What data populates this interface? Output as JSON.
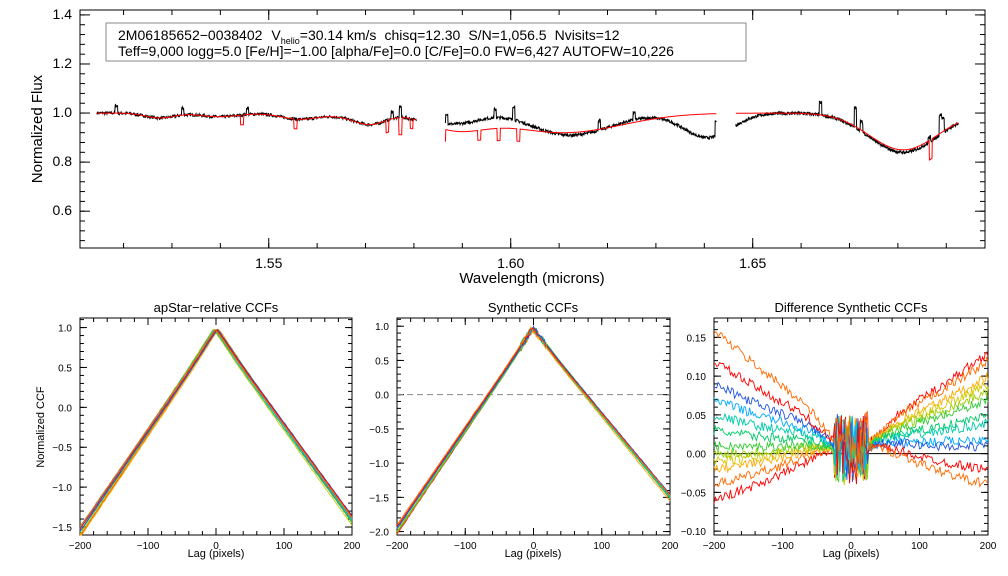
{
  "colors": {
    "observed": "#000000",
    "model": "#ff0000",
    "zero_line_dashed": "#888888",
    "zero_line_solid": "#000000",
    "ccf_palette": [
      "#ff0000",
      "#ff6a00",
      "#ffaa00",
      "#d4c800",
      "#9acd00",
      "#33cc33",
      "#00cc66",
      "#00ccaa",
      "#00aaff",
      "#2255dd"
    ]
  },
  "info_box": {
    "star_id": "2M06185652−0038402",
    "vhelio_label": "V",
    "vhelio_sub": "helio",
    "vhelio_value": "=30.14 km/s",
    "chisq": "chisq=12.30",
    "snr": "S/N=1,056.5",
    "nvisits": "Nvisits=12",
    "line2": "Teff=9,000 logg=5.0 [Fe/H]=−1.00 [alpha/Fe]=0.0 [C/Fe]=0.0 FW=6,427 AUTOFW=10,226"
  },
  "chart_data": [
    {
      "id": "spectrum",
      "type": "line",
      "title": "",
      "xlabel": "Wavelength (microns)",
      "ylabel": "Normalized Flux",
      "xlim": [
        1.511,
        1.698
      ],
      "ylim": [
        0.45,
        1.42
      ],
      "xticks": [
        1.55,
        1.6,
        1.65
      ],
      "xtick_labels": [
        "1.55",
        "1.60",
        "1.65"
      ],
      "yticks": [
        0.6,
        0.8,
        1.0,
        1.2,
        1.4
      ],
      "ytick_labels": [
        "0.6",
        "0.8",
        "1.0",
        "1.2",
        "1.4"
      ],
      "segments": [
        [
          1.5145,
          1.5805
        ],
        [
          1.5865,
          1.6425
        ],
        [
          1.6465,
          1.6925
        ]
      ],
      "series": [
        {
          "name": "observed",
          "dips": [
            [
              1.5275,
              0.02,
              0.003
            ],
            [
              1.5398,
              0.015,
              0.004
            ],
            [
              1.5565,
              0.025,
              0.004
            ],
            [
              1.5685,
              0.02,
              0.004
            ],
            [
              1.5715,
              0.03,
              0.003
            ],
            [
              1.5885,
              0.07,
              0.006
            ],
            [
              1.6109,
              0.11,
              0.009
            ],
            [
              1.6407,
              0.1,
              0.005
            ],
            [
              1.6811,
              0.16,
              0.007
            ]
          ],
          "spikes": [
            [
              1.5185,
              0.03
            ],
            [
              1.5322,
              0.03
            ],
            [
              1.5456,
              0.025
            ],
            [
              1.5755,
              0.03
            ],
            [
              1.5772,
              0.045
            ],
            [
              1.5868,
              0.04
            ],
            [
              1.5968,
              0.035
            ],
            [
              1.6006,
              0.055
            ],
            [
              1.6183,
              0.04
            ],
            [
              1.6255,
              0.03
            ],
            [
              1.6425,
              0.06
            ],
            [
              1.664,
              0.05
            ],
            [
              1.6712,
              0.08
            ],
            [
              1.6725,
              0.04
            ],
            [
              1.6865,
              0.02
            ],
            [
              1.6888,
              0.08
            ],
            [
              1.6893,
              0.06
            ]
          ],
          "hump": [
            1.5975,
            0.04,
            0.012
          ]
        },
        {
          "name": "model",
          "dips": [
            [
              1.5275,
              0.02,
              0.003
            ],
            [
              1.5398,
              0.015,
              0.004
            ],
            [
              1.5565,
              0.025,
              0.004
            ],
            [
              1.5685,
              0.02,
              0.004
            ],
            [
              1.5715,
              0.03,
              0.003
            ],
            [
              1.5885,
              0.06,
              0.006
            ],
            [
              1.6109,
              0.08,
              0.012
            ],
            [
              1.6811,
              0.15,
              0.007
            ]
          ],
          "lines": [
            [
              1.5135,
              0.05
            ],
            [
              1.5445,
              0.04
            ],
            [
              1.5555,
              0.04
            ],
            [
              1.5745,
              0.05
            ],
            [
              1.5772,
              0.07
            ],
            [
              1.5795,
              0.04
            ],
            [
              1.5862,
              0.05
            ],
            [
              1.5935,
              0.04
            ],
            [
              1.5975,
              0.05
            ],
            [
              1.6016,
              0.05
            ],
            [
              1.6868,
              0.08
            ]
          ]
        }
      ]
    },
    {
      "id": "apstar_ccf",
      "type": "line",
      "title": "apStar−relative CCFs",
      "xlabel": "Lag (pixels)",
      "ylabel": "Normalized CCF",
      "xlim": [
        -200,
        200
      ],
      "ylim": [
        -1.6,
        1.12
      ],
      "xticks": [
        -200,
        -100,
        0,
        100,
        200
      ],
      "xtick_labels": [
        "−200",
        "−100",
        "0",
        "100",
        "200"
      ],
      "yticks": [
        -1.5,
        -1.0,
        -0.5,
        0.0,
        0.5,
        1.0
      ],
      "ytick_labels": [
        "−1.5",
        "−1.0",
        "−0.5",
        "0.0",
        "0.5",
        "1.0"
      ],
      "peak_value": 0.98,
      "edge_values": [
        -1.52,
        -1.38
      ],
      "n_series": 12
    },
    {
      "id": "synthetic_ccf",
      "type": "line",
      "title": "Synthetic CCFs",
      "xlabel": "Lag (pixels)",
      "ylabel": "",
      "xlim": [
        -200,
        200
      ],
      "ylim": [
        -2.05,
        1.12
      ],
      "xticks": [
        -200,
        -100,
        0,
        100,
        200
      ],
      "xtick_labels": [
        "−200",
        "−100",
        "0",
        "100",
        "200"
      ],
      "yticks": [
        -2.0,
        -1.5,
        -1.0,
        -0.5,
        0.0,
        0.5,
        1.0
      ],
      "ytick_labels": [
        "−2.0",
        "−1.5",
        "−1.0",
        "−0.5",
        "0.0",
        "0.5",
        "1.0"
      ],
      "zero_line": 0.0,
      "peak_value": 0.97,
      "edge_values": [
        -1.95,
        -1.45
      ],
      "n_series": 12
    },
    {
      "id": "difference_ccf",
      "type": "line",
      "title": "Difference Synthetic CCFs",
      "xlabel": "Lag (pixels)",
      "ylabel": "",
      "xlim": [
        -200,
        200
      ],
      "ylim": [
        -0.105,
        0.175
      ],
      "xticks": [
        -200,
        -100,
        0,
        100,
        200
      ],
      "xtick_labels": [
        "−200",
        "−100",
        "0",
        "100",
        "200"
      ],
      "yticks": [
        -0.1,
        -0.05,
        0.0,
        0.05,
        0.1,
        0.15
      ],
      "ytick_labels": [
        "−0.10",
        "−0.05",
        "0.00",
        "0.05",
        "0.10",
        "0.15"
      ],
      "zero_line": 0.0,
      "left_values": [
        -0.06,
        -0.04,
        -0.02,
        -0.01,
        0.0,
        0.01,
        0.03,
        0.05,
        0.07,
        0.09,
        0.12,
        0.16
      ],
      "right_values": [
        0.13,
        0.12,
        0.1,
        0.09,
        0.08,
        0.07,
        0.05,
        0.04,
        0.02,
        0.01,
        -0.02,
        -0.04
      ],
      "n_series": 12
    }
  ]
}
